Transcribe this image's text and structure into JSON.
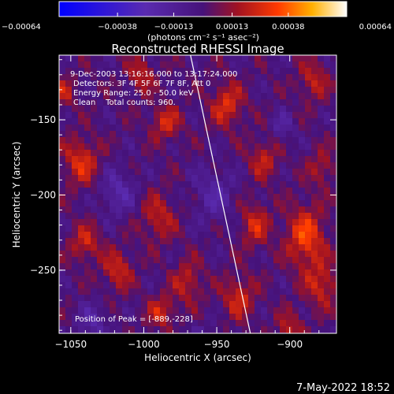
{
  "chart_data": {
    "type": "heatmap",
    "title": "Reconstructed RHESSI Image",
    "xlabel": "Heliocentric X (arcsec)",
    "ylabel": "Heliocentric Y (arcsec)",
    "xlim": [
      -1058,
      -868
    ],
    "ylim": [
      -292,
      -107
    ],
    "x_ticks": [
      -1050,
      -1000,
      -950,
      -900
    ],
    "y_ticks": [
      -150,
      -200,
      -250
    ],
    "colorbar": {
      "label": "(photons cm⁻² s⁻¹ asec⁻²)",
      "range": [
        -0.00064,
        0.00064
      ],
      "ticks": [
        "-0.00064",
        "-0.00038",
        "-0.00013",
        "0.00013",
        "0.00038",
        "0.00064"
      ]
    },
    "annotations": [
      "9-Dec-2003 13:16:16.000 to 13:17:24.000",
      "Detectors: 3F 4F 5F 6F 7F 8F, Att 0",
      "Energy Range: 25.0 - 50.0 keV",
      "Clean    Total counts: 960."
    ],
    "peak_label": "Position of Peak = [-889,-228]",
    "peak": [
      -889,
      -228
    ],
    "limb_line": [
      [
        -968,
        -107
      ],
      [
        -927,
        -292
      ]
    ],
    "colors": {
      "limb": "#ffffff",
      "text": "#ffffff",
      "background": "#000000"
    }
  },
  "footer": {
    "timestamp": "7-May-2022 18:52"
  }
}
